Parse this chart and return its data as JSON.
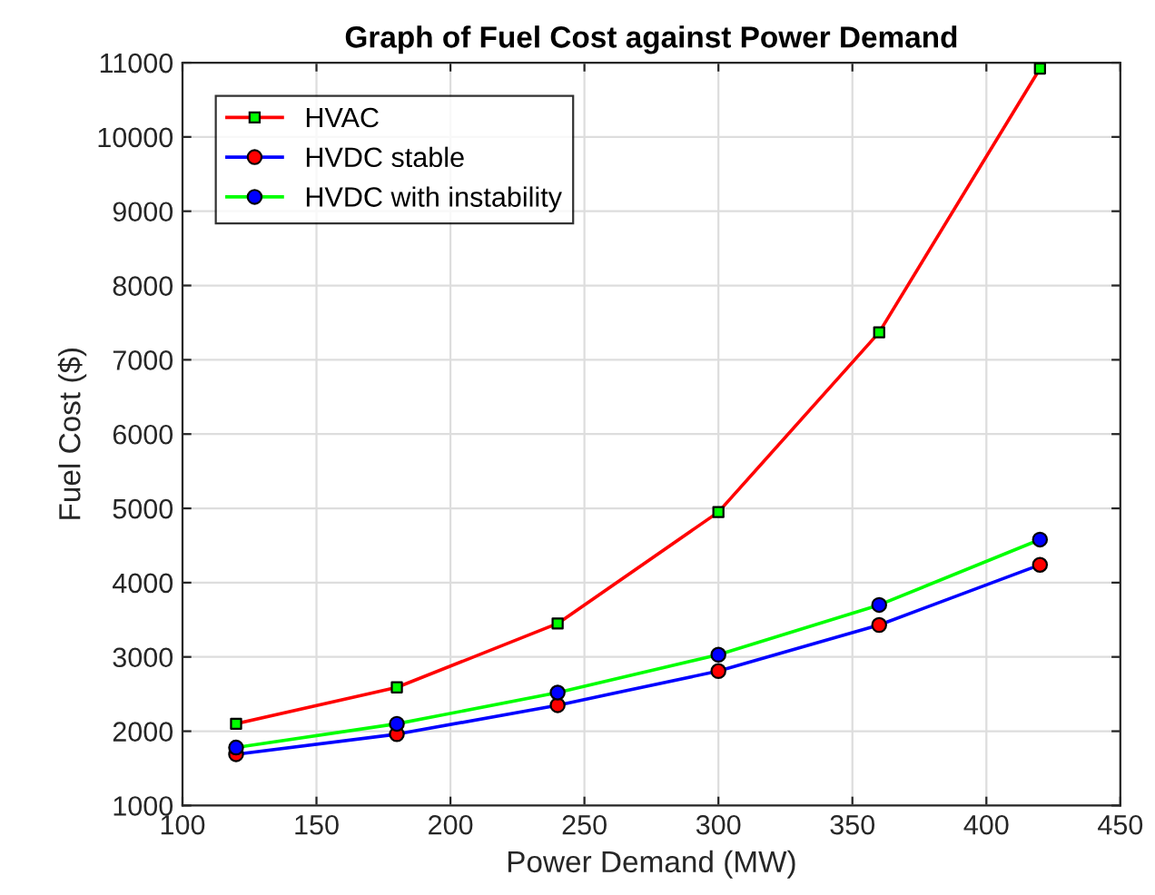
{
  "chart_data": {
    "type": "line",
    "title": "Graph of Fuel Cost against Power Demand",
    "xlabel": "Power Demand (MW)",
    "ylabel": "Fuel Cost ($)",
    "x": [
      120,
      180,
      240,
      300,
      360,
      420
    ],
    "series": [
      {
        "name": "HVAC",
        "color": "#ff0000",
        "marker": "square",
        "colors": [
          "#00ff00",
          "#00ff00",
          "#00ff00",
          "#00ff00",
          "#00ff00",
          "#00ff00"
        ],
        "values": [
          2100,
          2590,
          3450,
          4950,
          7370,
          10920
        ]
      },
      {
        "name": "HVDC stable",
        "color": "#0000ff",
        "marker": "circle",
        "colors": [
          "#ff0000",
          "#ff0000",
          "#ff0000",
          "#ff0000",
          "#ff0000",
          "#ff0000"
        ],
        "values": [
          1690,
          1960,
          2350,
          2810,
          3430,
          4240
        ]
      },
      {
        "name": "HVDC with instability",
        "color": "#00ff00",
        "marker": "circle",
        "colors": [
          "#0000ff",
          "#0000ff",
          "#0000ff",
          "#0000ff",
          "#0000ff",
          "#0000ff"
        ],
        "values": [
          1780,
          2100,
          2520,
          3030,
          3700,
          4580
        ]
      }
    ],
    "xlim": [
      100,
      450
    ],
    "xticks": [
      100,
      150,
      200,
      250,
      300,
      350,
      400,
      450
    ],
    "ylim": [
      1000,
      11000
    ],
    "yticks": [
      1000,
      2000,
      3000,
      4000,
      5000,
      6000,
      7000,
      8000,
      9000,
      10000,
      11000
    ],
    "grid": true,
    "legend": "top left"
  }
}
